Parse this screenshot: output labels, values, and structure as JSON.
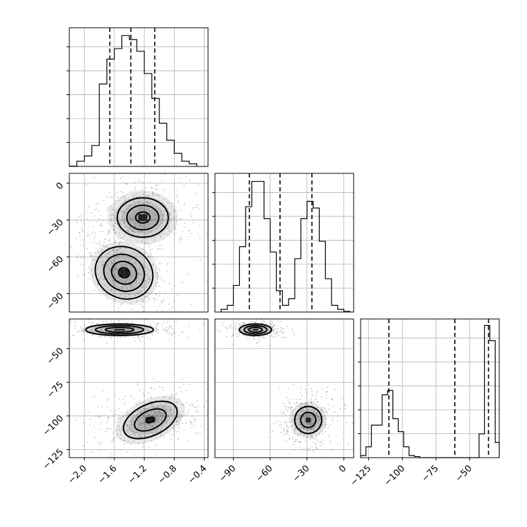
{
  "chart_data": {
    "type": "corner",
    "title": "",
    "parameters": [
      {
        "range": [
          -2.2,
          -0.35
        ],
        "ticks": [
          -2.0,
          -1.6,
          -1.2,
          -0.8,
          -0.4
        ],
        "tick_labels": [
          "−2.0",
          "−1.6",
          "−1.2",
          "−0.8",
          "−0.4"
        ]
      },
      {
        "range": [
          -105,
          8
        ],
        "ticks": [
          -90,
          -60,
          -30,
          0
        ],
        "tick_labels": [
          "−90",
          "−60",
          "−30",
          "0"
        ]
      },
      {
        "range": [
          -131,
          -28
        ],
        "ticks": [
          -125,
          -100,
          -75,
          -50
        ],
        "tick_labels": [
          "−125",
          "−100",
          "−75",
          "−50"
        ]
      }
    ],
    "diagonal": [
      {
        "param": 0,
        "type": "histogram",
        "edges": [
          -2.2,
          -2.1,
          -2.0,
          -1.9,
          -1.8,
          -1.7,
          -1.6,
          -1.5,
          -1.4,
          -1.3,
          -1.2,
          -1.1,
          -1.0,
          -0.9,
          -0.8,
          -0.7,
          -0.6,
          -0.5
        ],
        "counts": [
          0.2,
          4,
          8,
          16,
          63,
          82,
          90,
          100,
          97,
          88,
          71,
          52,
          33,
          20,
          10,
          4,
          2
        ],
        "quantiles": [
          -1.66,
          -1.38,
          -1.06
        ],
        "ymax": 106
      },
      {
        "param": 1,
        "type": "histogram",
        "edges": [
          -100,
          -95,
          -90,
          -85,
          -80,
          -75,
          -70,
          -65,
          -60,
          -55,
          -50,
          -45,
          -40,
          -35,
          -30,
          -25,
          -20,
          -15,
          -10,
          -5,
          0,
          5
        ],
        "counts": [
          2,
          5,
          20,
          49,
          79,
          98,
          98,
          70,
          45,
          16,
          5,
          10,
          40,
          70,
          83,
          78,
          53,
          25,
          5,
          2,
          0.5
        ],
        "quantiles": [
          -77,
          -52,
          -26
        ],
        "ymax": 104
      },
      {
        "param": 2,
        "type": "histogram",
        "edges": [
          -131,
          -127,
          -123,
          -119,
          -115,
          -111,
          -107,
          -103,
          -99,
          -95,
          -91,
          -87,
          -83,
          -79,
          -75,
          -71,
          -67,
          -63,
          -59,
          -55,
          -51,
          -47,
          -43,
          -39,
          -35,
          -31,
          -28
        ],
        "counts": [
          1,
          5,
          15,
          15,
          29,
          31,
          18,
          12,
          5,
          1,
          0.5,
          0,
          0,
          0,
          0,
          0,
          0,
          0,
          0,
          0,
          0,
          0,
          11,
          61,
          54,
          7
        ],
        "quantiles": [
          -110,
          -61,
          -36
        ],
        "ymax": 64
      }
    ],
    "pairs": [
      {
        "x_param": 0,
        "y_param": 1,
        "clusters": [
          {
            "mean": [
              -1.22,
              -28
            ],
            "sd": [
              0.17,
              8
            ],
            "rho": 0.0,
            "n": 420,
            "contour_scales": [
              0.45,
              1.0,
              1.6
            ]
          },
          {
            "mean": [
              -1.47,
              -73
            ],
            "sd": [
              0.17,
              9
            ],
            "rho": -0.5,
            "n": 460,
            "contour_scales": [
              0.35,
              0.8,
              1.3,
              1.85
            ]
          }
        ]
      },
      {
        "x_param": 0,
        "y_param": 2,
        "clusters": [
          {
            "mean": [
              -1.53,
              -36
            ],
            "sd": [
              0.19,
              1.8
            ],
            "rho": 0.0,
            "n": 280,
            "contour_scales": [
              0.8,
              1.35,
              1.9
            ]
          },
          {
            "mean": [
              -1.12,
              -103
            ],
            "sd": [
              0.18,
              5.5
            ],
            "rho": 0.35,
            "n": 480,
            "contour_scales": [
              0.25,
              1.0,
              1.7
            ]
          }
        ]
      },
      {
        "x_param": 1,
        "y_param": 2,
        "clusters": [
          {
            "mean": [
              -72,
              -36
            ],
            "sd": [
              5.5,
              1.8
            ],
            "rho": 0.0,
            "n": 280,
            "contour_scales": [
              0.8,
              1.35,
              1.9
            ]
          },
          {
            "mean": [
              -29,
              -103
            ],
            "sd": [
              5.5,
              5.0
            ],
            "rho": 0.1,
            "n": 480,
            "contour_scales": [
              0.9,
              1.6
            ]
          }
        ]
      }
    ],
    "grid": true
  }
}
